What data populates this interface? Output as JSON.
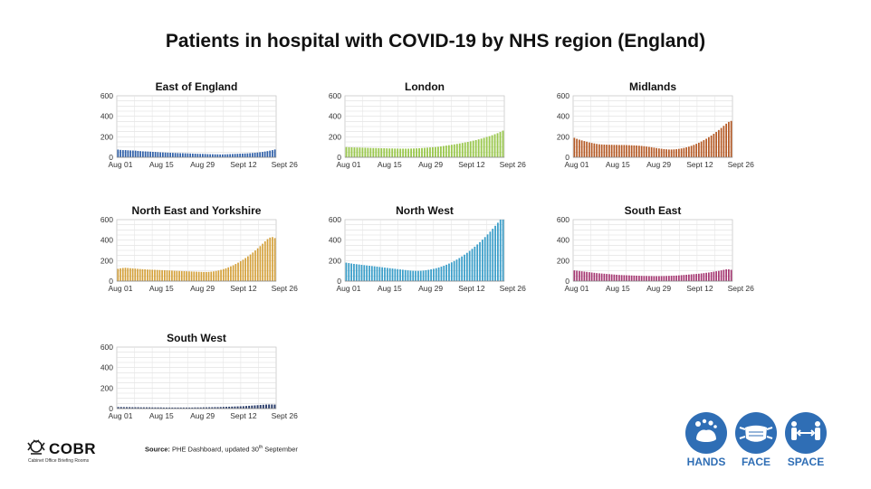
{
  "title": "Patients in hospital with COVID-19 by NHS region (England)",
  "chart_data": [
    {
      "type": "bar",
      "title": "East of England",
      "color": "#2e5fa8",
      "ylim": [
        0,
        600
      ],
      "yticks": [
        0,
        200,
        400,
        600
      ],
      "xticks": [
        "Aug 01",
        "Aug 15",
        "Aug 29",
        "Sept 12",
        "Sept 26"
      ],
      "values": [
        75,
        72,
        70,
        70,
        68,
        67,
        66,
        65,
        62,
        60,
        58,
        57,
        56,
        55,
        53,
        52,
        50,
        48,
        47,
        46,
        45,
        44,
        43,
        42,
        41,
        40,
        40,
        39,
        38,
        37,
        36,
        35,
        34,
        33,
        33,
        32,
        31,
        30,
        30,
        29,
        29,
        28,
        28,
        29,
        30,
        31,
        32,
        33,
        34,
        35,
        36,
        37,
        38,
        40,
        42,
        44,
        46,
        49,
        52,
        56,
        60,
        65,
        70,
        76
      ]
    },
    {
      "type": "bar",
      "title": "London",
      "color": "#9bc84f",
      "ylim": [
        0,
        600
      ],
      "yticks": [
        0,
        200,
        400,
        600
      ],
      "xticks": [
        "Aug 01",
        "Aug 15",
        "Aug 29",
        "Sept 12",
        "Sept 26"
      ],
      "values": [
        100,
        98,
        97,
        96,
        95,
        95,
        94,
        93,
        92,
        91,
        90,
        90,
        89,
        88,
        88,
        87,
        86,
        86,
        85,
        85,
        84,
        84,
        84,
        84,
        85,
        86,
        87,
        88,
        90,
        92,
        94,
        96,
        98,
        100,
        103,
        106,
        110,
        114,
        118,
        122,
        126,
        130,
        135,
        140,
        145,
        150,
        156,
        162,
        168,
        175,
        182,
        190,
        198,
        206,
        215,
        225,
        235,
        247,
        260
      ]
    },
    {
      "type": "bar",
      "title": "Midlands",
      "color": "#b55a25",
      "ylim": [
        0,
        600
      ],
      "yticks": [
        0,
        200,
        400,
        600
      ],
      "xticks": [
        "Aug 01",
        "Aug 15",
        "Aug 29",
        "Sept 12",
        "Sept 26"
      ],
      "values": [
        190,
        180,
        172,
        165,
        158,
        152,
        145,
        140,
        135,
        130,
        127,
        125,
        124,
        123,
        122,
        122,
        121,
        121,
        120,
        120,
        120,
        119,
        118,
        117,
        116,
        115,
        113,
        111,
        108,
        105,
        102,
        98,
        94,
        90,
        86,
        83,
        80,
        78,
        76,
        76,
        77,
        79,
        82,
        86,
        91,
        97,
        104,
        112,
        121,
        131,
        142,
        154,
        167,
        181,
        196,
        212,
        229,
        247,
        266,
        286,
        307,
        328,
        345,
        355
      ]
    },
    {
      "type": "bar",
      "title": "North East and Yorkshire",
      "color": "#d4a039",
      "ylim": [
        0,
        600
      ],
      "yticks": [
        0,
        200,
        400,
        600
      ],
      "xticks": [
        "Aug 01",
        "Aug 15",
        "Aug 29",
        "Sept 12",
        "Sept 26"
      ],
      "values": [
        120,
        125,
        128,
        130,
        128,
        126,
        124,
        122,
        120,
        118,
        116,
        115,
        113,
        112,
        111,
        110,
        109,
        108,
        107,
        106,
        105,
        104,
        103,
        101,
        100,
        99,
        98,
        97,
        96,
        95,
        94,
        93,
        92,
        91,
        90,
        89,
        89,
        90,
        92,
        95,
        99,
        104,
        110,
        117,
        125,
        134,
        144,
        155,
        167,
        180,
        194,
        209,
        225,
        242,
        260,
        279,
        299,
        320,
        342,
        365,
        388,
        410,
        425,
        430,
        420
      ]
    },
    {
      "type": "bar",
      "title": "North West",
      "color": "#3a9ec9",
      "ylim": [
        0,
        600
      ],
      "yticks": [
        0,
        200,
        400,
        600
      ],
      "xticks": [
        "Aug 01",
        "Aug 15",
        "Aug 29",
        "Sept 12",
        "Sept 26"
      ],
      "values": [
        180,
        176,
        172,
        168,
        165,
        162,
        159,
        156,
        153,
        150,
        147,
        144,
        141,
        138,
        135,
        132,
        129,
        126,
        123,
        120,
        117,
        114,
        111,
        108,
        105,
        103,
        101,
        100,
        100,
        101,
        103,
        106,
        110,
        115,
        120,
        126,
        133,
        141,
        150,
        160,
        171,
        183,
        196,
        210,
        225,
        241,
        258,
        276,
        295,
        315,
        336,
        358,
        381,
        405,
        430,
        456,
        483,
        511,
        540,
        570,
        600,
        610
      ]
    },
    {
      "type": "bar",
      "title": "South East",
      "color": "#a63873",
      "ylim": [
        0,
        600
      ],
      "yticks": [
        0,
        200,
        400,
        600
      ],
      "xticks": [
        "Aug 01",
        "Aug 15",
        "Aug 29",
        "Sept 12",
        "Sept 26"
      ],
      "values": [
        105,
        102,
        99,
        96,
        93,
        90,
        87,
        84,
        81,
        78,
        76,
        74,
        72,
        70,
        68,
        66,
        64,
        62,
        60,
        59,
        58,
        57,
        56,
        55,
        54,
        53,
        52,
        51,
        50,
        50,
        49,
        49,
        48,
        48,
        48,
        49,
        49,
        50,
        51,
        52,
        53,
        54,
        56,
        58,
        60,
        62,
        64,
        66,
        68,
        70,
        72,
        75,
        78,
        81,
        84,
        88,
        92,
        96,
        100,
        105,
        110,
        115,
        115,
        110
      ]
    },
    {
      "type": "bar",
      "title": "South West",
      "color": "#2a3d6b",
      "ylim": [
        0,
        600
      ],
      "yticks": [
        0,
        200,
        400,
        600
      ],
      "xticks": [
        "Aug 01",
        "Aug 15",
        "Aug 29",
        "Sept 12",
        "Sept 26"
      ],
      "values": [
        15,
        15,
        14,
        14,
        14,
        13,
        13,
        13,
        12,
        12,
        12,
        12,
        11,
        11,
        11,
        11,
        10,
        10,
        10,
        10,
        10,
        10,
        10,
        10,
        10,
        10,
        10,
        11,
        11,
        11,
        12,
        12,
        13,
        13,
        14,
        14,
        15,
        16,
        17,
        18,
        19,
        20,
        21,
        22,
        23,
        25,
        27,
        29,
        31,
        33,
        35,
        37,
        39,
        40,
        40,
        39
      ]
    }
  ],
  "source": {
    "label": "Source:",
    "text": "PHE Dashboard, updated 30",
    "sup": "th",
    "after": " September"
  },
  "logo": {
    "word": "COBR",
    "sub": "Cabinet Office Briefing Rooms"
  },
  "badges": [
    {
      "label": "HANDS",
      "icon": "hands-washing-icon"
    },
    {
      "label": "FACE",
      "icon": "face-mask-icon"
    },
    {
      "label": "SPACE",
      "icon": "social-distance-icon"
    }
  ]
}
